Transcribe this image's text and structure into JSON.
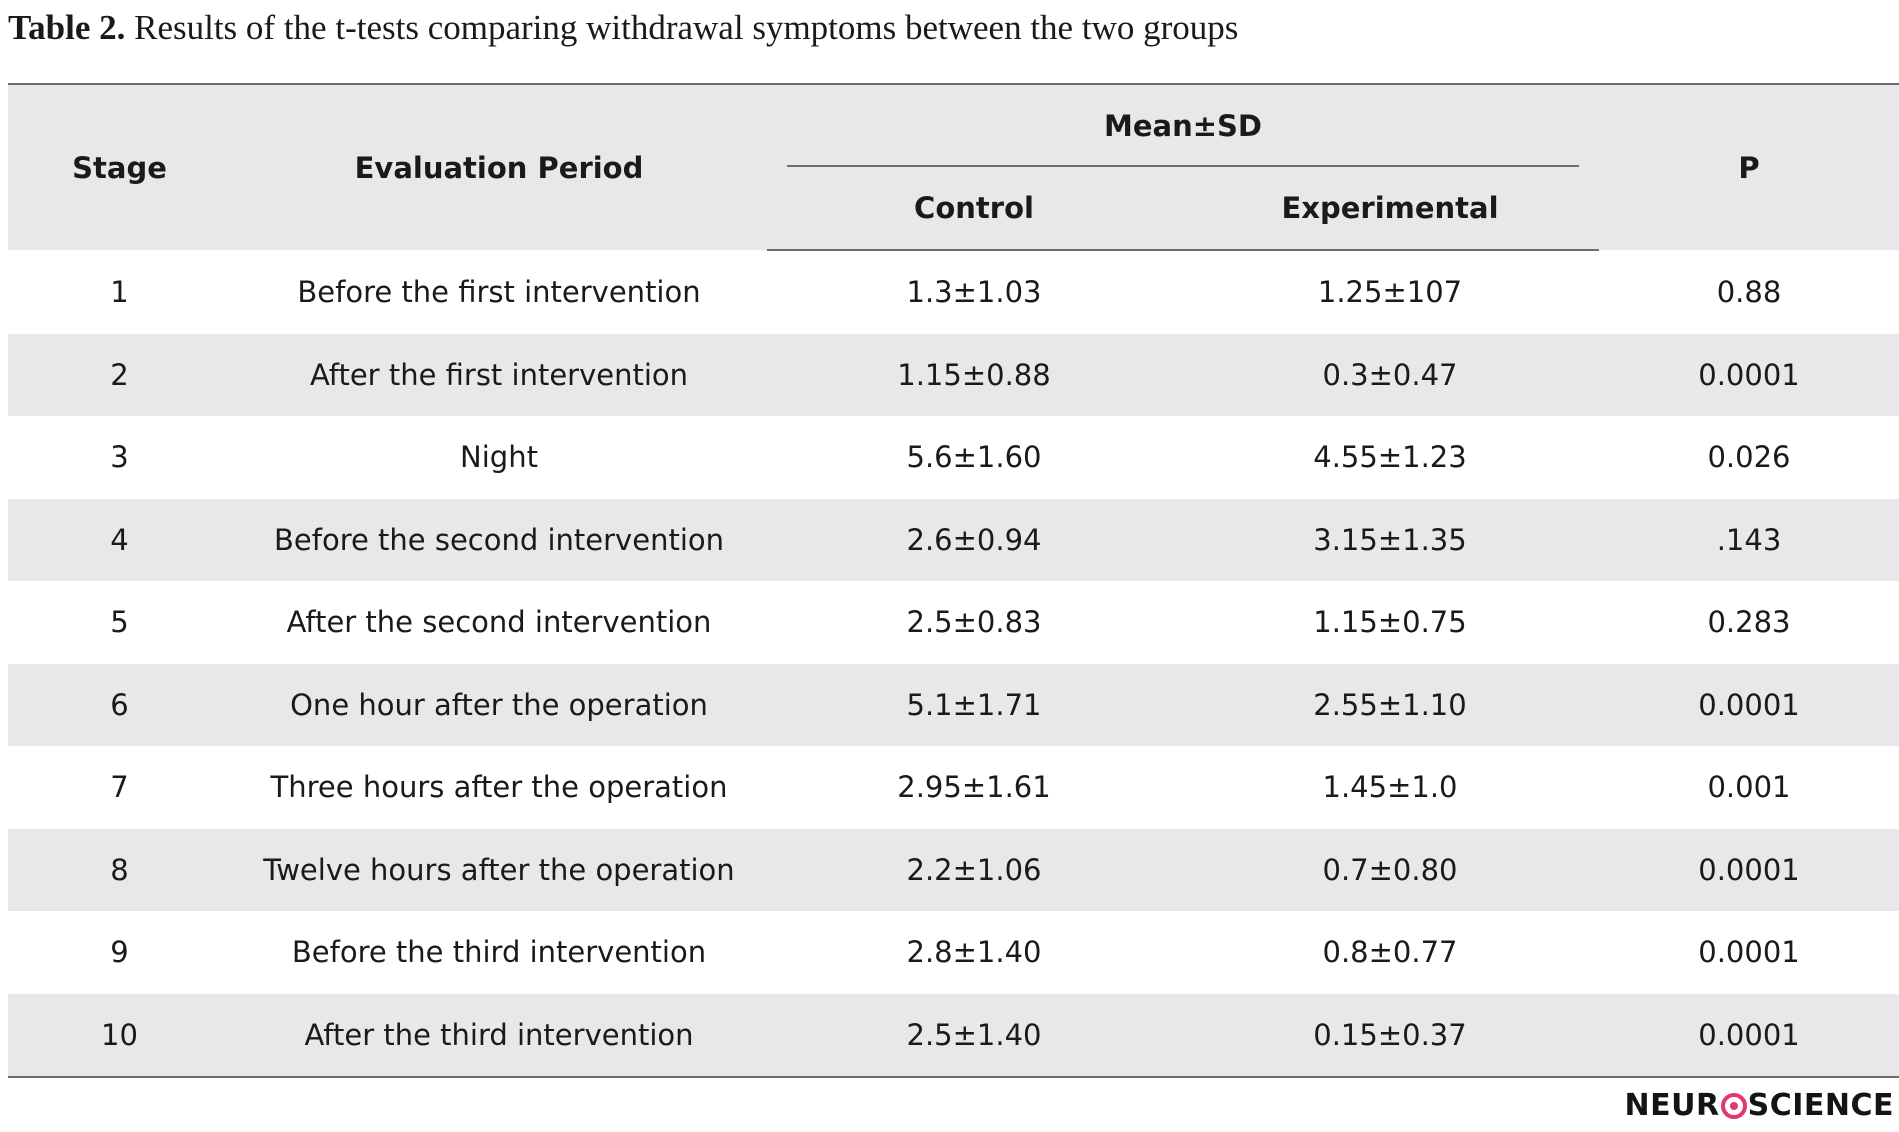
{
  "caption": {
    "label": "Table 2.",
    "text": " Results of the t-tests comparing withdrawal symptoms between the two groups"
  },
  "table": {
    "headers": {
      "stage": "Stage",
      "period": "Evaluation Period",
      "group": "Mean±SD",
      "control": "Control",
      "experimental": "Experimental",
      "p": "P"
    },
    "rows": [
      {
        "stage": "1",
        "period": "Before the first intervention",
        "control": "1.3±1.03",
        "experimental": "1.25±107",
        "p": "0.88"
      },
      {
        "stage": "2",
        "period": "After the first intervention",
        "control": "1.15±0.88",
        "experimental": "0.3±0.47",
        "p": "0.0001"
      },
      {
        "stage": "3",
        "period": "Night",
        "control": "5.6±1.60",
        "experimental": "4.55±1.23",
        "p": "0.026"
      },
      {
        "stage": "4",
        "period": "Before the second intervention",
        "control": "2.6±0.94",
        "experimental": "3.15±1.35",
        "p": ".143"
      },
      {
        "stage": "5",
        "period": "After the second intervention",
        "control": "2.5±0.83",
        "experimental": "1.15±0.75",
        "p": "0.283"
      },
      {
        "stage": "6",
        "period": "One hour after the operation",
        "control": "5.1±1.71",
        "experimental": "2.55±1.10",
        "p": "0.0001"
      },
      {
        "stage": "7",
        "period": "Three hours after the operation",
        "control": "2.95±1.61",
        "experimental": "1.45±1.0",
        "p": "0.001"
      },
      {
        "stage": "8",
        "period": "Twelve hours after the operation",
        "control": "2.2±1.06",
        "experimental": "0.7±0.80",
        "p": "0.0001"
      },
      {
        "stage": "9",
        "period": "Before the third intervention",
        "control": "2.8±1.40",
        "experimental": "0.8±0.77",
        "p": "0.0001"
      },
      {
        "stage": "10",
        "period": "After the third intervention",
        "control": "2.5±1.40",
        "experimental": "0.15±0.37",
        "p": "0.0001"
      }
    ]
  },
  "logo": {
    "text_before": "NEUR",
    "text_after": "SCIENCE",
    "accent_color": "#e1386e"
  },
  "colors": {
    "stripe": "#e8e8eb",
    "rule": "#6d6d6d"
  }
}
